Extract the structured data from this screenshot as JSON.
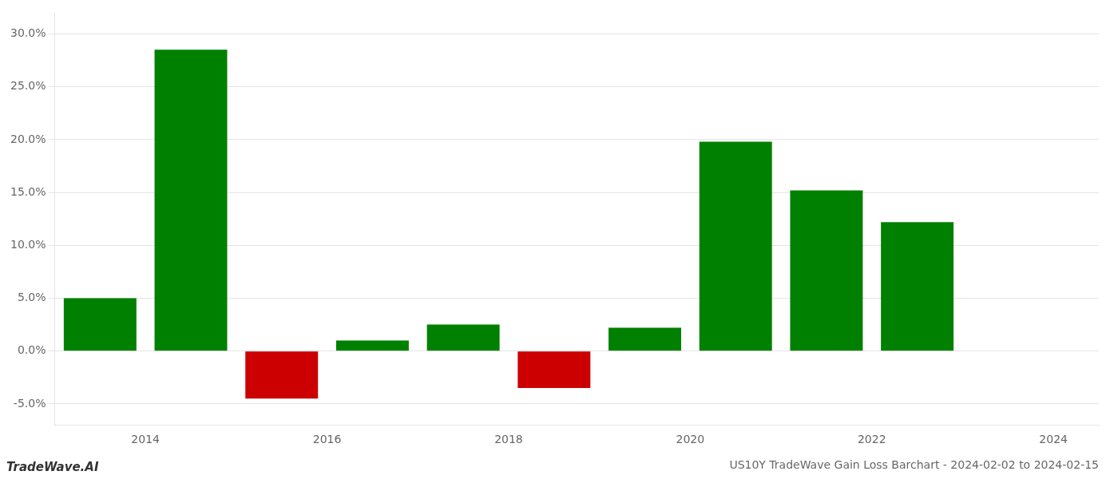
{
  "chart_data": {
    "type": "bar",
    "title": "US10Y TradeWave Gain Loss Barchart - 2024-02-02 to 2024-02-15",
    "annotations": [
      "TradeWave.AI"
    ],
    "x": [
      2013.5,
      2014.5,
      2015.5,
      2016.5,
      2017.5,
      2018.5,
      2019.5,
      2020.5,
      2021.5,
      2022.5
    ],
    "values": [
      0.05,
      0.285,
      -0.045,
      0.01,
      0.025,
      -0.035,
      0.022,
      0.198,
      0.152,
      0.122
    ],
    "colors": [
      "#008000",
      "#008000",
      "#cc0000",
      "#008000",
      "#008000",
      "#cc0000",
      "#008000",
      "#008000",
      "#008000",
      "#008000"
    ],
    "xlim": [
      2013.0,
      2024.5
    ],
    "xticks": [
      2014,
      2016,
      2018,
      2020,
      2022,
      2024
    ],
    "ylim": [
      -0.07,
      0.32
    ],
    "yticks": [
      {
        "value": -0.05,
        "label": "-5.0%"
      },
      {
        "value": 0.0,
        "label": "0.0%"
      },
      {
        "value": 0.05,
        "label": "5.0%"
      },
      {
        "value": 0.1,
        "label": "10.0%"
      },
      {
        "value": 0.15,
        "label": "15.0%"
      },
      {
        "value": 0.2,
        "label": "20.0%"
      },
      {
        "value": 0.25,
        "label": "25.0%"
      },
      {
        "value": 0.3,
        "label": "30.0%"
      }
    ],
    "grid": true
  }
}
